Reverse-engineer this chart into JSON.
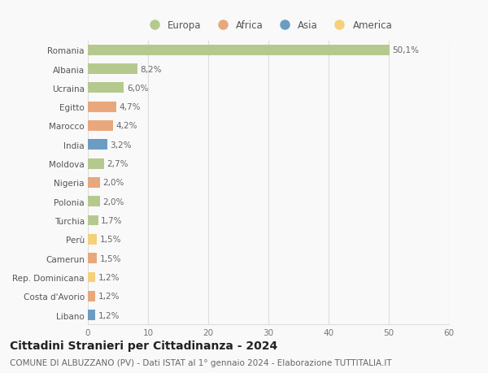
{
  "countries": [
    "Romania",
    "Albania",
    "Ucraina",
    "Egitto",
    "Marocco",
    "India",
    "Moldova",
    "Nigeria",
    "Polonia",
    "Turchia",
    "Perù",
    "Camerun",
    "Rep. Dominicana",
    "Costa d'Avorio",
    "Libano"
  ],
  "values": [
    50.1,
    8.2,
    6.0,
    4.7,
    4.2,
    3.2,
    2.7,
    2.0,
    2.0,
    1.7,
    1.5,
    1.5,
    1.2,
    1.2,
    1.2
  ],
  "labels": [
    "50,1%",
    "8,2%",
    "6,0%",
    "4,7%",
    "4,2%",
    "3,2%",
    "2,7%",
    "2,0%",
    "2,0%",
    "1,7%",
    "1,5%",
    "1,5%",
    "1,2%",
    "1,2%",
    "1,2%"
  ],
  "continents": [
    "Europa",
    "Europa",
    "Europa",
    "Africa",
    "Africa",
    "Asia",
    "Europa",
    "Africa",
    "Europa",
    "Europa",
    "America",
    "Africa",
    "America",
    "Africa",
    "Asia"
  ],
  "continent_colors": {
    "Europa": "#b5c98e",
    "Africa": "#e8a87c",
    "Asia": "#6b9dc2",
    "America": "#f5d07a"
  },
  "legend_entries": [
    "Europa",
    "Africa",
    "Asia",
    "America"
  ],
  "legend_colors": [
    "#b5c98e",
    "#e8a87c",
    "#6b9dc2",
    "#f5d07a"
  ],
  "xlim": [
    0,
    60
  ],
  "xticks": [
    0,
    10,
    20,
    30,
    40,
    50,
    60
  ],
  "title": "Cittadini Stranieri per Cittadinanza - 2024",
  "subtitle": "COMUNE DI ALBUZZANO (PV) - Dati ISTAT al 1° gennaio 2024 - Elaborazione TUTTITALIA.IT",
  "background_color": "#f9f9f9",
  "grid_color": "#dddddd",
  "bar_height": 0.55,
  "label_fontsize": 7.5,
  "tick_fontsize": 7.5,
  "title_fontsize": 10,
  "subtitle_fontsize": 7.5
}
